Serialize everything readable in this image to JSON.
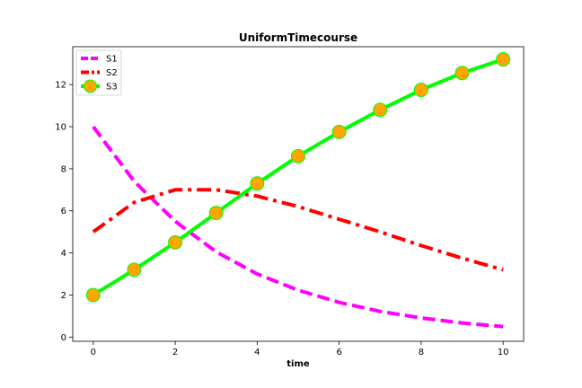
{
  "chart_data": {
    "type": "line",
    "title": "UniformTimecourse",
    "xlabel": "time",
    "ylabel": "",
    "xlim": [
      -0.5,
      10.5
    ],
    "ylim": [
      -0.2,
      13.8
    ],
    "xticks": [
      0,
      2,
      4,
      6,
      8,
      10
    ],
    "yticks": [
      0,
      2,
      4,
      6,
      8,
      10,
      12
    ],
    "grid": false,
    "legend_position": "upper-left",
    "x": [
      0,
      1,
      2,
      3,
      4,
      5,
      6,
      7,
      8,
      9,
      10
    ],
    "series": [
      {
        "name": "S1",
        "color": "#ff00ff",
        "linestyle": "dashed",
        "marker": "none",
        "values": [
          10.0,
          7.4,
          5.5,
          4.05,
          3.0,
          2.23,
          1.65,
          1.22,
          0.91,
          0.67,
          0.5
        ]
      },
      {
        "name": "S2",
        "color": "#ff0000",
        "linestyle": "dashdot",
        "marker": "none",
        "values": [
          5.0,
          6.4,
          7.0,
          7.0,
          6.7,
          6.2,
          5.6,
          5.0,
          4.35,
          3.75,
          3.2
        ]
      },
      {
        "name": "S3",
        "color": "#00ff00",
        "linestyle": "solid",
        "marker": "circle",
        "marker_color": "#ffa500",
        "values": [
          2.0,
          3.2,
          4.5,
          5.9,
          7.3,
          8.6,
          9.75,
          10.8,
          11.75,
          12.55,
          13.2
        ]
      }
    ]
  }
}
